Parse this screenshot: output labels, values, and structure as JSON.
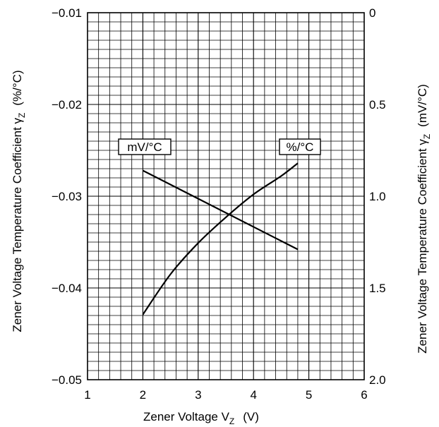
{
  "chart_data": {
    "type": "line",
    "xlabel": "Zener Voltage  V",
    "xlabel_sub": "Z",
    "xlabel_unit": "(V)",
    "ylabel_left": "Zener Voltage Temperature Coefficient  γ",
    "ylabel_left_sub": "Z",
    "ylabel_left_unit": "(%/°C)",
    "ylabel_right": "Zener Voltage Temperature Coefficient  γ",
    "ylabel_right_sub": "Z",
    "ylabel_right_unit": "(mV/°C)",
    "xlim": [
      1,
      6
    ],
    "ylim_left": [
      -0.05,
      -0.01
    ],
    "ylim_right": [
      2.0,
      0
    ],
    "x_ticks": [
      "1",
      "2",
      "3",
      "4",
      "5",
      "6"
    ],
    "y_left_ticks": [
      "−0.01",
      "−0.02",
      "−0.03",
      "−0.04",
      "−0.05"
    ],
    "y_right_ticks": [
      "0",
      "0.5",
      "1.0",
      "1.5",
      "2.0"
    ],
    "grid": true,
    "series": [
      {
        "name": "mV/°C",
        "axis": "right",
        "x": [
          2.0,
          4.8
        ],
        "y": [
          0.86,
          1.29
        ]
      },
      {
        "name": "%/°C",
        "axis": "left",
        "x": [
          2.0,
          2.5,
          3.0,
          3.5,
          4.0,
          4.5,
          4.8
        ],
        "y": [
          -0.0429,
          -0.0385,
          -0.0351,
          -0.0323,
          -0.0298,
          -0.0278,
          -0.0264
        ]
      }
    ]
  }
}
